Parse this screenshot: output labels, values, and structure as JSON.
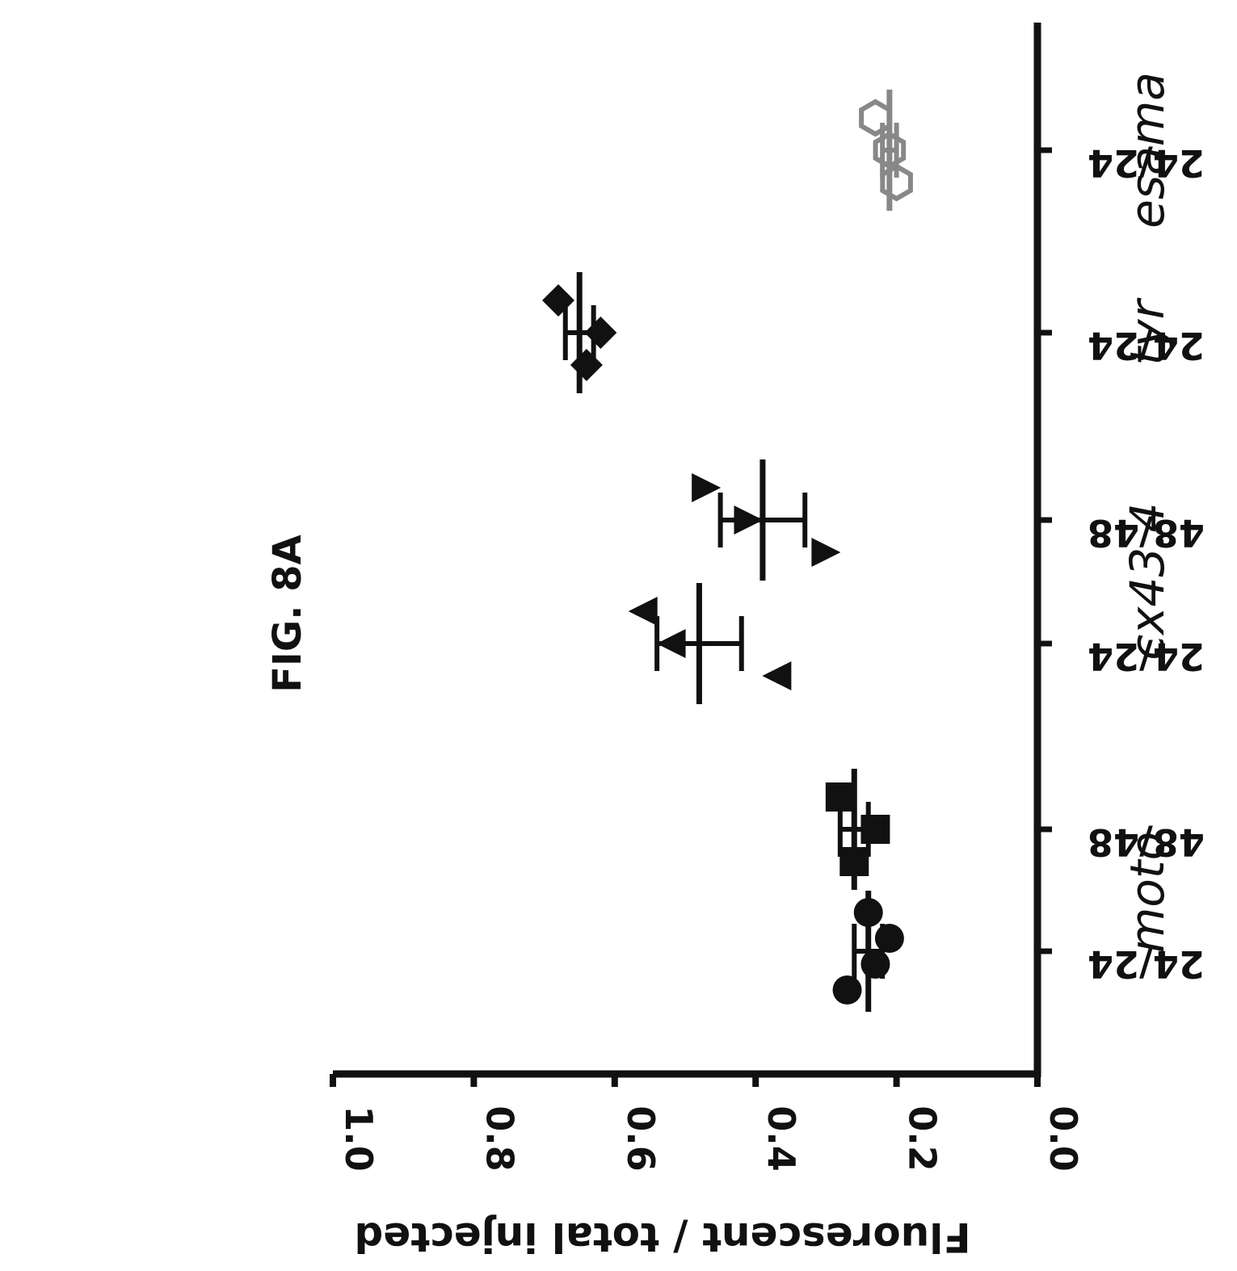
{
  "figure_label": "FIG. 8A",
  "chart_data": {
    "type": "scatter",
    "orientation": "rotated 90 degrees clockwise",
    "ylabel": "Fluorescent / total injected",
    "ylim": [
      0.0,
      1.0
    ],
    "yticks": [
      "0.0",
      "0.2",
      "0.4",
      "0.6",
      "0.8",
      "1.0"
    ],
    "categories": [
      {
        "label": "24/24",
        "gene": "moto",
        "marker": "circle",
        "color": "#111111",
        "values": [
          0.24,
          0.21,
          0.23,
          0.27
        ],
        "mean": 0.24,
        "error": 0.02
      },
      {
        "label": "48/48",
        "gene": "moto",
        "marker": "square",
        "color": "#111111",
        "values": [
          0.28,
          0.23,
          0.26
        ],
        "mean": 0.26,
        "error": 0.02
      },
      {
        "label": "24/24",
        "gene": "cx43.4",
        "marker": "triangle",
        "color": "#111111",
        "values": [
          0.56,
          0.52,
          0.37
        ],
        "mean": 0.48,
        "error": 0.06
      },
      {
        "label": "48/48",
        "gene": "cx43.4",
        "marker": "triangle-down",
        "color": "#111111",
        "values": [
          0.47,
          0.41,
          0.3
        ],
        "mean": 0.39,
        "error": 0.06
      },
      {
        "label": "24/24",
        "gene": "tyr",
        "marker": "diamond",
        "color": "#111111",
        "values": [
          0.68,
          0.62,
          0.64
        ],
        "mean": 0.65,
        "error": 0.02
      },
      {
        "label": "24/24",
        "gene": "esama",
        "marker": "hexagon",
        "color": "#888888",
        "values": [
          0.23,
          0.21,
          0.2
        ],
        "mean": 0.21,
        "error": 0.01
      }
    ],
    "gene_groups": [
      "moto",
      "cx43.4",
      "tyr",
      "esama"
    ],
    "grid": false,
    "legend": "none"
  }
}
